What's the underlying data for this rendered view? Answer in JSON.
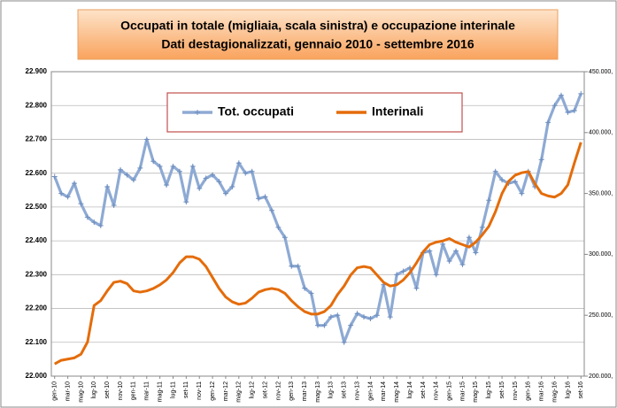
{
  "chart_data": {
    "type": "line",
    "title": "Occupati in  totale (migliaia, scala sinistra)  e occupazione interinale",
    "subtitle": "Dati destagionalizzati, gennaio 2010 - settembre 2016",
    "categories": [
      "gen-10",
      null,
      "mar-10",
      null,
      "mag-10",
      null,
      "lug-10",
      null,
      "set-10",
      null,
      "nov-10",
      null,
      "gen-11",
      null,
      "mar-11",
      null,
      "mag-11",
      null,
      "lug-11",
      null,
      "set-11",
      null,
      "nov-11",
      null,
      "gen-12",
      null,
      "mar-12",
      null,
      "mag-12",
      null,
      "lug-12",
      null,
      "set-12",
      null,
      "nov-12",
      null,
      "gen-13",
      null,
      "mar-13",
      null,
      "mag-13",
      null,
      "lug-13",
      null,
      "set-13",
      null,
      "nov-13",
      null,
      "gen-14",
      null,
      "mar-14",
      null,
      "mag-14",
      null,
      "lug-14",
      null,
      "set-14",
      null,
      "nov-14",
      null,
      "gen-15",
      null,
      "mar-15",
      null,
      "mag-15",
      null,
      "lug-15",
      null,
      "set-15",
      null,
      "nov-15",
      null,
      "gen-16",
      null,
      "mar-16",
      null,
      "mag-16",
      null,
      "lug-16",
      null,
      "set-16"
    ],
    "series": [
      {
        "name": "Tot. occupati",
        "color": "#8eaad4",
        "axis": "y",
        "values": [
          22590,
          22540,
          22530,
          22570,
          22510,
          22470,
          22455,
          22445,
          22560,
          22505,
          22610,
          22595,
          22580,
          22615,
          22700,
          22635,
          22620,
          22565,
          22620,
          22605,
          22515,
          22620,
          22555,
          22585,
          22595,
          22575,
          22540,
          22560,
          22630,
          22600,
          22605,
          22525,
          22530,
          22490,
          22440,
          22410,
          22325,
          22325,
          22260,
          22245,
          22150,
          22150,
          22175,
          22180,
          22100,
          22150,
          22185,
          22175,
          22170,
          22180,
          22270,
          22175,
          22300,
          22310,
          22320,
          22260,
          22365,
          22370,
          22300,
          22390,
          22340,
          22370,
          22330,
          22410,
          22365,
          22440,
          22520,
          22605,
          22580,
          22570,
          22575,
          22540,
          22605,
          22560,
          22640,
          22750,
          22800,
          22830,
          22780,
          22785,
          22835
        ]
      },
      {
        "name": "Interinali",
        "color": "#e46c0a",
        "axis": "y2",
        "values": [
          210000,
          213000,
          214000,
          215000,
          218000,
          228000,
          258000,
          262000,
          270000,
          277000,
          278000,
          276000,
          270000,
          269000,
          270000,
          272000,
          275000,
          279000,
          285000,
          293000,
          298000,
          298000,
          296000,
          290000,
          281000,
          272000,
          265000,
          261000,
          259000,
          260000,
          264000,
          269000,
          271000,
          272000,
          271000,
          268000,
          262000,
          257000,
          253000,
          251000,
          251000,
          253000,
          258000,
          267000,
          274000,
          283000,
          289000,
          290000,
          289000,
          283000,
          277000,
          274000,
          275000,
          279000,
          285000,
          293000,
          302000,
          308000,
          310000,
          311000,
          313000,
          310000,
          308000,
          306000,
          310000,
          316000,
          323000,
          335000,
          350000,
          360000,
          365000,
          367000,
          368000,
          358000,
          350000,
          348000,
          347000,
          350000,
          357000,
          375000,
          392000
        ]
      }
    ],
    "ylim": [
      22000,
      22900
    ],
    "yticks": [
      {
        "value": 22000,
        "label": "22.000"
      },
      {
        "value": 22100,
        "label": "22.100"
      },
      {
        "value": 22200,
        "label": "22.200"
      },
      {
        "value": 22300,
        "label": "22.300"
      },
      {
        "value": 22400,
        "label": "22.400"
      },
      {
        "value": 22500,
        "label": "22.500"
      },
      {
        "value": 22600,
        "label": "22.600"
      },
      {
        "value": 22700,
        "label": "22.700"
      },
      {
        "value": 22800,
        "label": "22.800"
      },
      {
        "value": 22900,
        "label": "22.900"
      }
    ],
    "y2lim": [
      200000,
      450000
    ],
    "y2ticks": [
      {
        "value": 200000,
        "label": "200.000,"
      },
      {
        "value": 250000,
        "label": "250.000,"
      },
      {
        "value": 300000,
        "label": "300.000,"
      },
      {
        "value": 350000,
        "label": "350.000,"
      },
      {
        "value": 400000,
        "label": "400.000,"
      },
      {
        "value": 450000,
        "label": "450.000,"
      }
    ],
    "grid": true,
    "legend": "top"
  }
}
